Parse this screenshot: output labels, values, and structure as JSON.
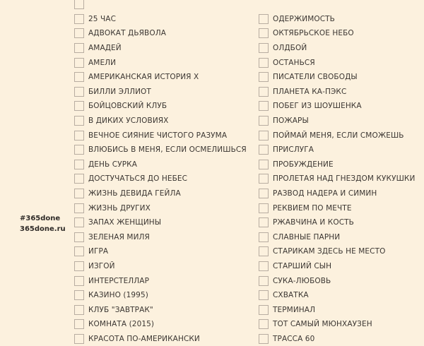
{
  "brand": {
    "hashtag": "#365done",
    "site": "365done.ru"
  },
  "left_items": [
    "",
    "25 ЧАС",
    "АДВОКАТ ДЬЯВОЛА",
    "АМАДЕЙ",
    "АМЕЛИ",
    "АМЕРИКАНСКАЯ ИСТОРИЯ X",
    "БИЛЛИ ЭЛЛИОТ",
    "БОЙЦОВСКИЙ КЛУБ",
    "В ДИКИХ УСЛОВИЯХ",
    "ВЕЧНОЕ СИЯНИЕ ЧИСТОГО РАЗУМА",
    "ВЛЮБИСЬ В МЕНЯ, ЕСЛИ ОСМЕЛИШЬСЯ",
    "ДЕНЬ СУРКА",
    "ДОСТУЧАТЬСЯ ДО НЕБЕС",
    "ЖИЗНЬ ДЕВИДА ГЕЙЛА",
    "ЖИЗНЬ ДРУГИХ",
    "ЗАПАХ ЖЕНЩИНЫ",
    "ЗЕЛЕНАЯ МИЛЯ",
    "ИГРА",
    "ИЗГОЙ",
    "ИНТЕРСТЕЛЛАР",
    "КАЗИНО (1995)",
    "КЛУБ \"ЗАВТРАК\"",
    "КОМНАТА (2015)",
    "КРАСОТА ПО-АМЕРИКАНСКИ"
  ],
  "right_items": [
    "",
    "ОДЕРЖИМОСТЬ",
    "ОКТЯБРЬСКОЕ НЕБО",
    "ОЛДБОЙ",
    "ОСТАНЬСЯ",
    "ПИСАТЕЛИ СВОБОДЫ",
    "ПЛАНЕТА КА-ПЭКС",
    "ПОБЕГ ИЗ ШОУШЕНКА",
    "ПОЖАРЫ",
    "ПОЙМАЙ МЕНЯ, ЕСЛИ СМОЖЕШЬ",
    "ПРИСЛУГА",
    "ПРОБУЖДЕНИЕ",
    "ПРОЛЕТАЯ НАД ГНЕЗДОМ КУКУШКИ",
    "РАЗВОД НАДЕРА И СИМИН",
    "РЕКВИЕМ ПО МЕЧТЕ",
    "РЖАВЧИНА И КОСТЬ",
    "СЛАВНЫЕ ПАРНИ",
    "СТАРИКАМ ЗДЕСЬ НЕ МЕСТО",
    "СТАРШИЙ СЫН",
    "СУКА-ЛЮБОВЬ",
    "СХВАТКА",
    "ТЕРМИНАЛ",
    "ТОТ САМЫЙ МЮНХАУЗЕН",
    "ТРАССА 60"
  ]
}
